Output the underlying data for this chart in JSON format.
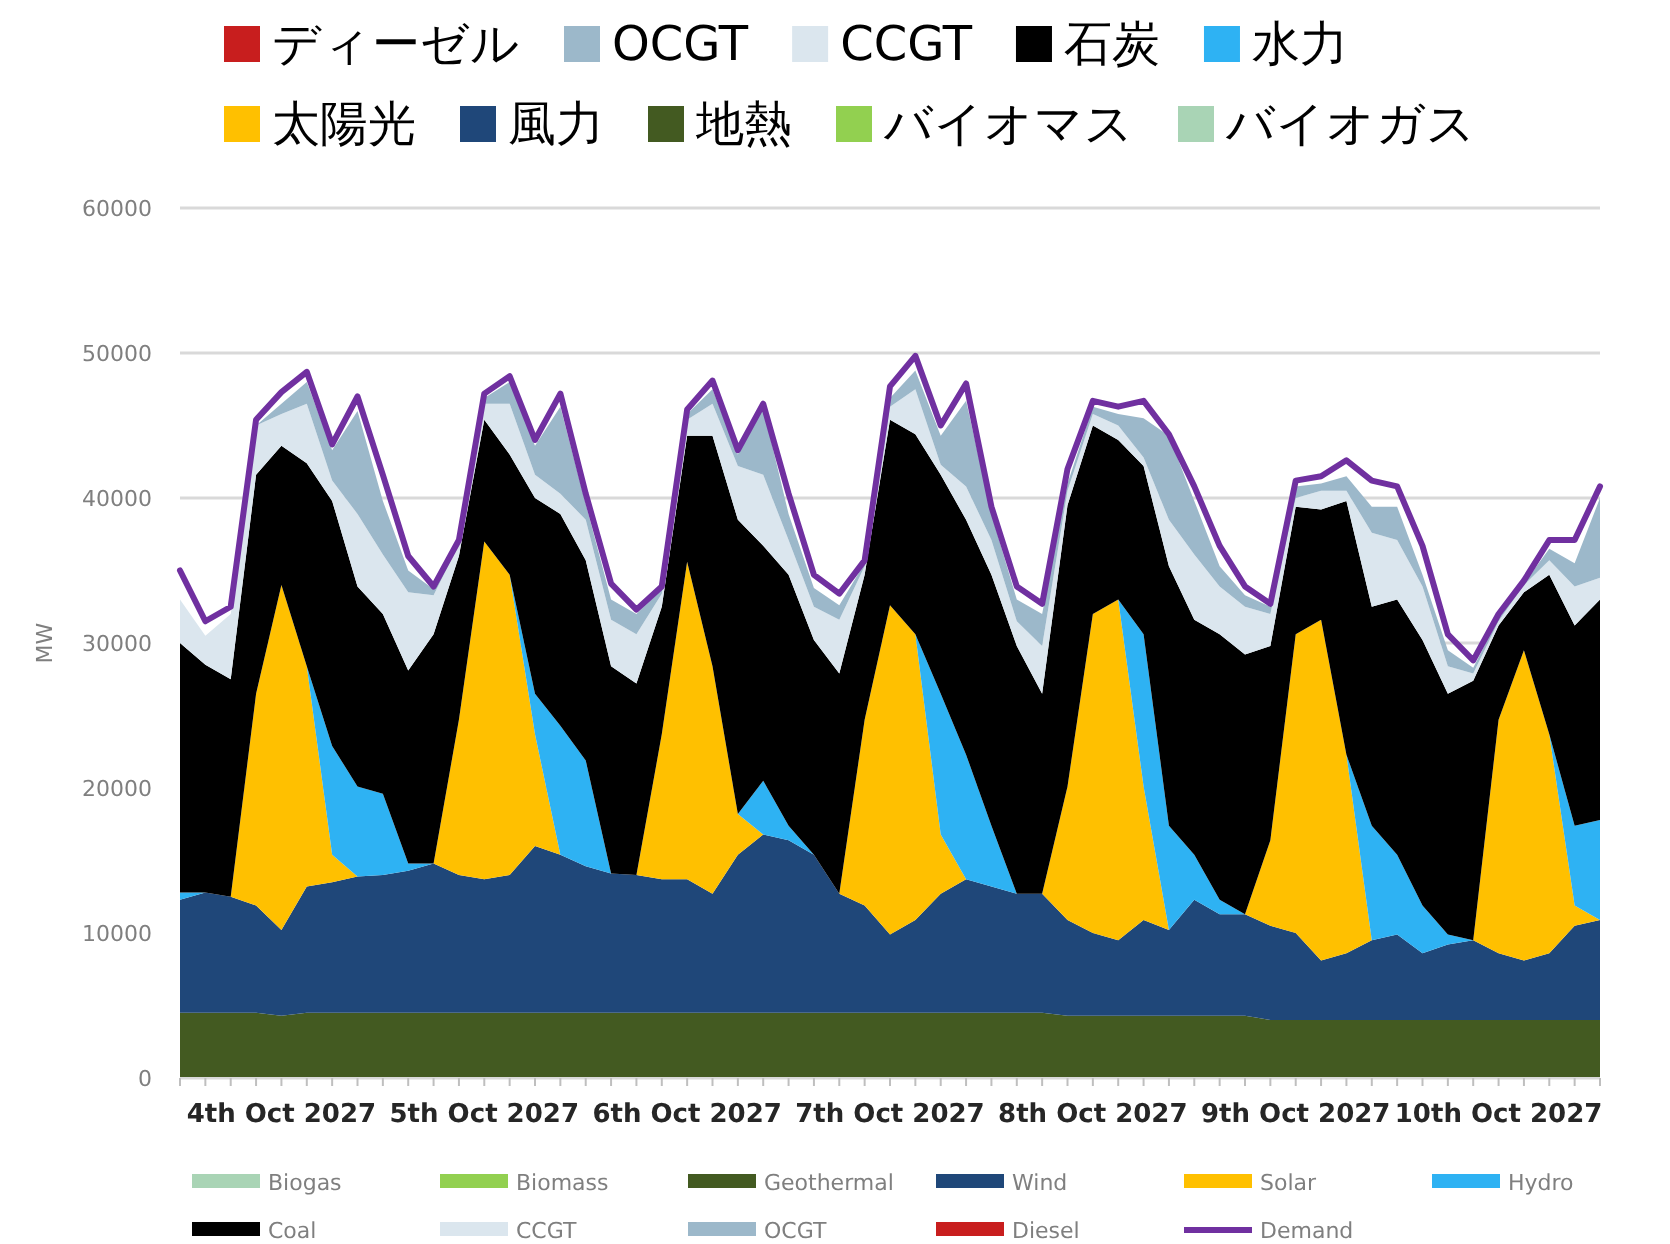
{
  "chart_data": {
    "type": "area",
    "stacked": true,
    "ylabel": "MW",
    "ylim": [
      0,
      60000
    ],
    "yticks": [
      0,
      10000,
      20000,
      30000,
      40000,
      50000,
      60000
    ],
    "categories": [
      null,
      null,
      null,
      null,
      "4th Oct 2027",
      null,
      null,
      null,
      null,
      null,
      null,
      null,
      "5th Oct 2027",
      null,
      null,
      null,
      null,
      null,
      null,
      null,
      "6th Oct 2027",
      null,
      null,
      null,
      null,
      null,
      null,
      null,
      "7th Oct 2027",
      null,
      null,
      null,
      null,
      null,
      null,
      null,
      "8th Oct 2027",
      null,
      null,
      null,
      null,
      null,
      null,
      null,
      "9th Oct 2027",
      null,
      null,
      null,
      null,
      null,
      null,
      null,
      "10th Oct 2027",
      null,
      null,
      null,
      null
    ],
    "grid": "y",
    "legend": "top",
    "series": [
      {
        "name": "バイオガス",
        "color": "#a9d4b5",
        "values": [
          null,
          null,
          null,
          null,
          null,
          null,
          null,
          null,
          null,
          null,
          null,
          null,
          null,
          null,
          null,
          null,
          null,
          null,
          null,
          null,
          null,
          null,
          null,
          null,
          null,
          null,
          null,
          null,
          null,
          null,
          null,
          null,
          null,
          null,
          null,
          null,
          null,
          null,
          null,
          null,
          null,
          null,
          null,
          null,
          null,
          null,
          null,
          null,
          null,
          null,
          null,
          null,
          null,
          null,
          null,
          null,
          null
        ]
      },
      {
        "name": "バイオマス",
        "color": "#92d050",
        "values": [
          null,
          null,
          null,
          null,
          null,
          null,
          null,
          null,
          null,
          null,
          null,
          null,
          null,
          null,
          null,
          null,
          null,
          null,
          null,
          null,
          null,
          null,
          null,
          null,
          null,
          null,
          null,
          null,
          null,
          null,
          null,
          null,
          null,
          null,
          null,
          null,
          null,
          null,
          null,
          null,
          null,
          null,
          null,
          null,
          null,
          null,
          null,
          null,
          null,
          null,
          null,
          null,
          null,
          null,
          null,
          null,
          null
        ]
      },
      {
        "name": "地熱",
        "color": "#435a21",
        "values": [
          4500,
          4500,
          4500,
          4500,
          4300,
          4500,
          4500,
          4500,
          4500,
          4500,
          4500,
          4500,
          4500,
          4500,
          4500,
          4500,
          4500,
          4500,
          4500,
          4500,
          4500,
          4500,
          4500,
          4500,
          4500,
          4500,
          4500,
          4500,
          4500,
          4500,
          4500,
          4500,
          4500,
          4500,
          4500,
          4300,
          4300,
          4300,
          4300,
          4300,
          4300,
          4300,
          4300,
          4000,
          4000,
          4000,
          4000,
          4000,
          4000,
          4000,
          4000,
          4000,
          4000,
          4000,
          4000,
          4000,
          4000
        ]
      },
      {
        "name": "風力",
        "color": "#1f4779",
        "values": [
          7800,
          8300,
          8000,
          7400,
          5900,
          8700,
          9000,
          9400,
          9500,
          9800,
          10300,
          9500,
          9200,
          9500,
          11500,
          10900,
          10100,
          9600,
          9500,
          9200,
          9200,
          8200,
          10900,
          12300,
          11900,
          10900,
          8200,
          7400,
          5400,
          6400,
          8200,
          9200,
          8700,
          8200,
          8200,
          6600,
          5700,
          5200,
          6600,
          5900,
          8000,
          7000,
          7000,
          6500,
          6000,
          4100,
          4600,
          5500,
          5900,
          4600,
          5200,
          5500,
          4600,
          4100,
          4600,
          6500,
          6900
        ]
      },
      {
        "name": "太陽光",
        "color": "#ffc000",
        "values": [
          0,
          0,
          0,
          14600,
          23800,
          15200,
          1900,
          0,
          0,
          0,
          0,
          10700,
          23300,
          20700,
          7700,
          0,
          0,
          0,
          0,
          10000,
          21900,
          15700,
          2800,
          0,
          0,
          0,
          0,
          12800,
          22700,
          19700,
          4100,
          0,
          0,
          0,
          0,
          9200,
          22000,
          23500,
          9200,
          0,
          0,
          0,
          0,
          5900,
          20600,
          23500,
          13700,
          0,
          0,
          0,
          0,
          0,
          16100,
          21400,
          15100,
          1400,
          0
        ]
      },
      {
        "name": "水力",
        "color": "#2eb2f3",
        "values": [
          500,
          0,
          0,
          0,
          0,
          0,
          7500,
          6200,
          5600,
          500,
          0,
          0,
          0,
          0,
          2800,
          8900,
          7300,
          0,
          0,
          0,
          0,
          0,
          0,
          3700,
          1000,
          0,
          0,
          0,
          0,
          0,
          9700,
          8600,
          4200,
          0,
          0,
          0,
          0,
          0,
          10500,
          7200,
          3100,
          1000,
          0,
          0,
          0,
          0,
          0,
          7900,
          5500,
          3300,
          700,
          0,
          0,
          0,
          0,
          5500,
          6900
        ]
      },
      {
        "name": "石炭",
        "color": "#000000",
        "values": [
          17200,
          15700,
          15000,
          15100,
          9600,
          14000,
          16900,
          13800,
          12400,
          13300,
          15800,
          11300,
          8400,
          8300,
          13500,
          14600,
          13800,
          14300,
          13200,
          8800,
          8700,
          15900,
          20300,
          16200,
          17300,
          14800,
          15200,
          10000,
          12800,
          13800,
          15100,
          16200,
          17300,
          17100,
          13800,
          19400,
          13000,
          11000,
          11600,
          17900,
          16200,
          18300,
          17900,
          13400,
          8800,
          7600,
          17500,
          15100,
          17600,
          18300,
          16600,
          17900,
          6500,
          4000,
          11000,
          13800,
          15200
        ]
      },
      {
        "name": "CCGT",
        "color": "#dbe6ee",
        "values": [
          3000,
          2000,
          4500,
          3400,
          2200,
          4100,
          1400,
          5000,
          4100,
          5400,
          2700,
          800,
          1100,
          3500,
          1600,
          1400,
          2800,
          3200,
          3400,
          900,
          1100,
          2200,
          3700,
          4900,
          2400,
          2300,
          3700,
          600,
          900,
          3100,
          700,
          2300,
          2400,
          1700,
          3300,
          1000,
          800,
          1000,
          600,
          3200,
          4500,
          3300,
          3300,
          2200,
          600,
          1300,
          700,
          5100,
          4100,
          3700,
          1900,
          500,
          300,
          500,
          1000,
          2700,
          1500
        ]
      },
      {
        "name": "OCGT",
        "color": "#9cb8ca",
        "values": [
          0,
          0,
          0,
          0,
          700,
          1500,
          2100,
          7100,
          3700,
          1500,
          400,
          200,
          400,
          1500,
          2000,
          6000,
          1100,
          1400,
          1400,
          300,
          400,
          1000,
          800,
          4600,
          1800,
          1300,
          1000,
          200,
          600,
          1300,
          2000,
          5900,
          1800,
          1500,
          2200,
          500,
          500,
          800,
          2700,
          5800,
          3700,
          1400,
          800,
          500,
          800,
          500,
          1000,
          1800,
          2300,
          800,
          1100,
          400,
          200,
          100,
          800,
          1600,
          5500
        ]
      },
      {
        "name": "ディーゼル",
        "color": "#c81e1e",
        "values": [
          null,
          null,
          null,
          null,
          null,
          null,
          null,
          null,
          null,
          null,
          null,
          null,
          null,
          null,
          null,
          null,
          null,
          null,
          null,
          null,
          null,
          null,
          null,
          null,
          null,
          null,
          null,
          null,
          null,
          null,
          null,
          null,
          null,
          null,
          null,
          null,
          null,
          null,
          null,
          null,
          null,
          null,
          null,
          null,
          null,
          null,
          null,
          null,
          null,
          null,
          null,
          null,
          null,
          null,
          null,
          null,
          null
        ]
      },
      {
        "name": "Demand",
        "type": "line",
        "color": "#7030a0",
        "values": [
          35000,
          31500,
          32500,
          45400,
          47300,
          48700,
          43700,
          47000,
          41600,
          36000,
          33900,
          37100,
          47200,
          48400,
          44000,
          47200,
          40300,
          34100,
          32300,
          33900,
          46100,
          48100,
          43300,
          46500,
          40300,
          34700,
          33400,
          35700,
          47700,
          49800,
          45000,
          47900,
          39400,
          33900,
          32700,
          42000,
          46700,
          46300,
          46700,
          44400,
          40800,
          36700,
          33900,
          32700,
          41200,
          41500,
          42600,
          41200,
          40800,
          36700,
          30600,
          28800,
          32000,
          34300,
          37100,
          37100,
          40800
        ]
      }
    ],
    "annotations": [
      "Biogas",
      "Biomass",
      "Geothermal",
      "Wind",
      "Solar",
      "Hydro",
      "Coal",
      "CCGT",
      "OCGT",
      "Diesel"
    ]
  }
}
